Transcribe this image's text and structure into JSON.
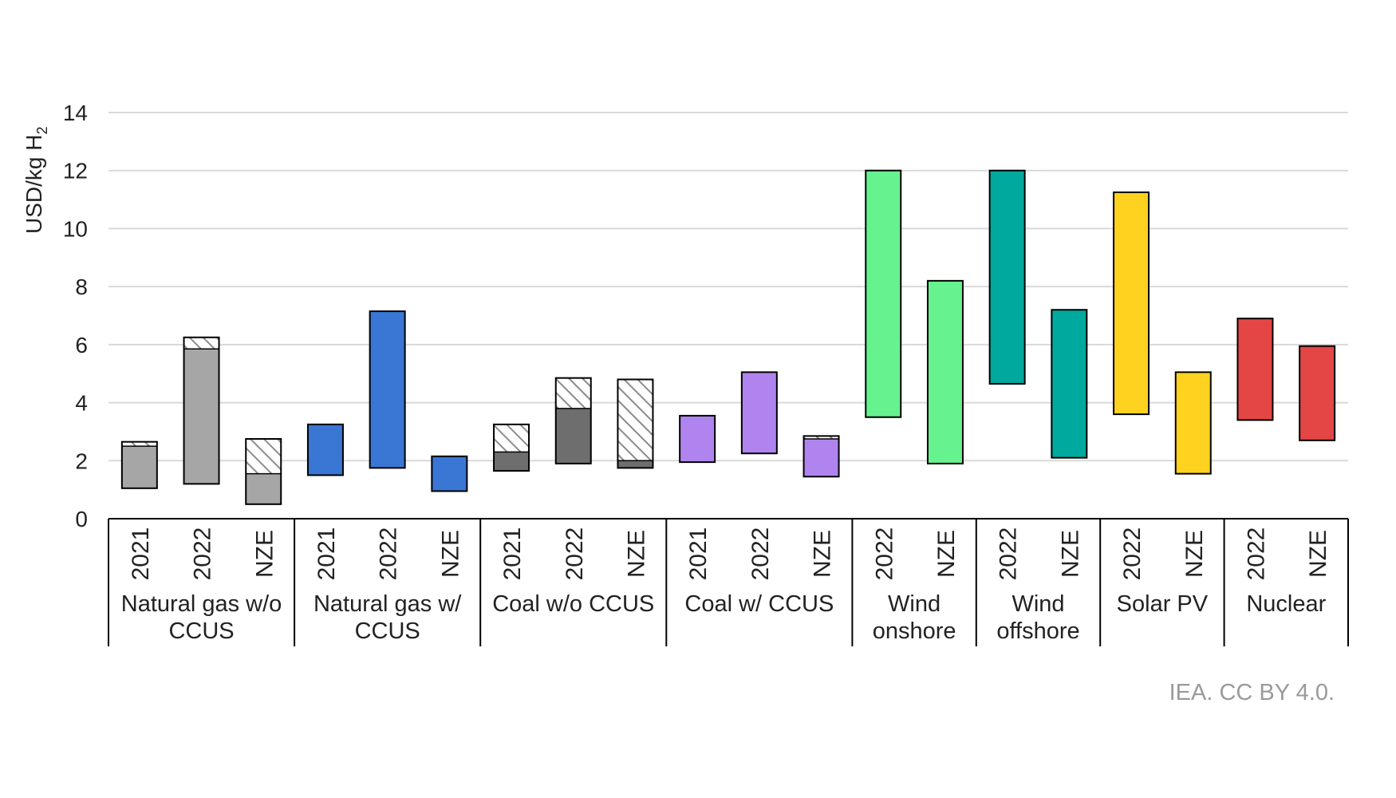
{
  "chart_data": {
    "type": "bar",
    "bar_style": "floating-range",
    "ylabel": "USD/kg H",
    "ylabel_subscript": "2",
    "ylim": [
      0,
      14
    ],
    "yticks": [
      "0",
      "2",
      "4",
      "6",
      "8",
      "10",
      "12",
      "14"
    ],
    "grid": true,
    "legend": "none",
    "groups": [
      {
        "label": "Natural gas w/o CCUS",
        "label_lines": [
          "Natural gas w/o",
          "CCUS"
        ],
        "color": "#A6A6A6",
        "bars": [
          {
            "label": "2021",
            "min": 1.05,
            "solid_top": 2.5,
            "max": 2.65
          },
          {
            "label": "2022",
            "min": 1.2,
            "solid_top": 5.85,
            "max": 6.25
          },
          {
            "label": "NZE",
            "min": 0.5,
            "solid_top": 1.55,
            "max": 2.75
          }
        ]
      },
      {
        "label": "Natural gas w/ CCUS",
        "label_lines": [
          "Natural gas w/",
          "CCUS"
        ],
        "color": "#3A76D3",
        "bars": [
          {
            "label": "2021",
            "min": 1.5,
            "solid_top": 3.25,
            "max": 3.25
          },
          {
            "label": "2022",
            "min": 1.75,
            "solid_top": 7.15,
            "max": 7.15
          },
          {
            "label": "NZE",
            "min": 0.95,
            "solid_top": 2.15,
            "max": 2.15
          }
        ]
      },
      {
        "label": "Coal w/o CCUS",
        "label_lines": [
          "Coal w/o CCUS"
        ],
        "color": "#6E6E6E",
        "bars": [
          {
            "label": "2021",
            "min": 1.65,
            "solid_top": 2.3,
            "max": 3.25
          },
          {
            "label": "2022",
            "min": 1.9,
            "solid_top": 3.8,
            "max": 4.85
          },
          {
            "label": "NZE",
            "min": 1.75,
            "solid_top": 2.0,
            "max": 4.8
          }
        ]
      },
      {
        "label": "Coal w/ CCUS",
        "label_lines": [
          "Coal w/ CCUS"
        ],
        "color": "#B084EE",
        "bars": [
          {
            "label": "2021",
            "min": 1.95,
            "solid_top": 3.55,
            "max": 3.55
          },
          {
            "label": "2022",
            "min": 2.25,
            "solid_top": 5.05,
            "max": 5.05
          },
          {
            "label": "NZE",
            "min": 1.45,
            "solid_top": 2.75,
            "max": 2.85
          }
        ]
      },
      {
        "label": "Wind onshore",
        "label_lines": [
          "Wind",
          "onshore"
        ],
        "color": "#66F28E",
        "bars": [
          {
            "label": "2022",
            "min": 3.5,
            "solid_top": 12.0,
            "max": 12.0
          },
          {
            "label": "NZE",
            "min": 1.9,
            "solid_top": 8.2,
            "max": 8.2
          }
        ]
      },
      {
        "label": "Wind offshore",
        "label_lines": [
          "Wind",
          "offshore"
        ],
        "color": "#00A99D",
        "bars": [
          {
            "label": "2022",
            "min": 4.65,
            "solid_top": 12.0,
            "max": 12.0
          },
          {
            "label": "NZE",
            "min": 2.1,
            "solid_top": 7.2,
            "max": 7.2
          }
        ]
      },
      {
        "label": "Solar PV",
        "label_lines": [
          "Solar PV"
        ],
        "color": "#FFD21F",
        "bars": [
          {
            "label": "2022",
            "min": 3.6,
            "solid_top": 11.25,
            "max": 11.25
          },
          {
            "label": "NZE",
            "min": 1.55,
            "solid_top": 5.05,
            "max": 5.05
          }
        ]
      },
      {
        "label": "Nuclear",
        "label_lines": [
          "Nuclear"
        ],
        "color": "#E44646",
        "bars": [
          {
            "label": "2022",
            "min": 3.4,
            "solid_top": 6.9,
            "max": 6.9
          },
          {
            "label": "NZE",
            "min": 2.7,
            "solid_top": 5.95,
            "max": 5.95
          }
        ]
      }
    ]
  },
  "credit": "IEA. CC BY 4.0."
}
